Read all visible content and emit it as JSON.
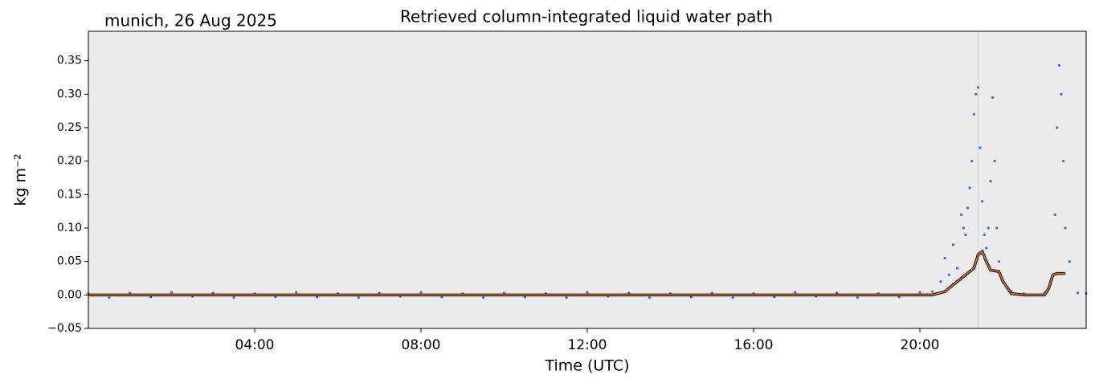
{
  "chart_data": {
    "type": "scatter",
    "title": "Retrieved column-integrated liquid water path",
    "subtitle": "munich, 26 Aug 2025",
    "x_label": "Time (UTC)",
    "y_label": "kg m⁻²",
    "xlim": [
      0,
      24
    ],
    "ylim": [
      -0.05,
      0.394
    ],
    "xticks": [
      {
        "value": 4,
        "label": "04:00"
      },
      {
        "value": 8,
        "label": "08:00"
      },
      {
        "value": 12,
        "label": "12:00"
      },
      {
        "value": 16,
        "label": "16:00"
      },
      {
        "value": 20,
        "label": "20:00"
      }
    ],
    "yticks": [
      {
        "value": -0.05,
        "label": "−0.05"
      },
      {
        "value": 0,
        "label": "0.00"
      },
      {
        "value": 0.05,
        "label": "0.05"
      },
      {
        "value": 0.1,
        "label": "0.10"
      },
      {
        "value": 0.15,
        "label": "0.15"
      },
      {
        "value": 0.2,
        "label": "0.20"
      },
      {
        "value": 0.25,
        "label": "0.25"
      },
      {
        "value": 0.3,
        "label": "0.30"
      },
      {
        "value": 0.35,
        "label": "0.35"
      }
    ],
    "vline": 21.4,
    "background": "#ebebeb",
    "series": [
      {
        "type": "scatter",
        "color": "#4169e1",
        "x": [
          0,
          0.5,
          1,
          1.5,
          2,
          2.5,
          3,
          3.5,
          4,
          4.5,
          5,
          5.5,
          6,
          6.5,
          7,
          7.5,
          8,
          8.5,
          9,
          9.5,
          10,
          10.5,
          11,
          11.5,
          12,
          12.5,
          13,
          13.5,
          14,
          14.5,
          15,
          15.5,
          16,
          16.5,
          17,
          17.5,
          18,
          18.5,
          19,
          19.5,
          20,
          20.3,
          20.5,
          20.6,
          20.7,
          20.8,
          20.9,
          21,
          21.05,
          21.1,
          21.15,
          21.2,
          21.25,
          21.3,
          21.35,
          21.4,
          21.45,
          21.5,
          21.55,
          21.6,
          21.65,
          21.7,
          21.75,
          21.8,
          21.85,
          21.9,
          22,
          22.1,
          22.2,
          22.5,
          23,
          23.2,
          23.25,
          23.3,
          23.35,
          23.4,
          23.45,
          23.5,
          23.6,
          23.8,
          24
        ],
        "values": [
          0.002,
          -0.004,
          0.003,
          -0.003,
          0.004,
          -0.002,
          0.003,
          -0.004,
          0.002,
          -0.003,
          0.004,
          -0.003,
          0.002,
          -0.004,
          0.003,
          -0.002,
          0.004,
          -0.003,
          0.002,
          -0.004,
          0.003,
          -0.003,
          0.002,
          -0.004,
          0.004,
          -0.002,
          0.003,
          -0.004,
          0.002,
          -0.003,
          0.003,
          -0.004,
          0.002,
          -0.003,
          0.004,
          -0.002,
          0.003,
          -0.004,
          0.002,
          -0.003,
          0.004,
          0.005,
          0.02,
          0.055,
          0.03,
          0.075,
          0.04,
          0.12,
          0.1,
          0.09,
          0.13,
          0.16,
          0.2,
          0.27,
          0.3,
          0.31,
          0.22,
          0.14,
          0.09,
          0.07,
          0.1,
          0.17,
          0.295,
          0.2,
          0.1,
          0.05,
          0.02,
          0.01,
          0.005,
          0.002,
          0.003,
          0.03,
          0.12,
          0.25,
          0.343,
          0.3,
          0.2,
          0.1,
          0.05,
          0.003,
          0.002
        ]
      },
      {
        "type": "line",
        "color": "#c87137",
        "x": [
          0,
          20.3,
          20.6,
          20.9,
          21.1,
          21.3,
          21.4,
          21.5,
          21.6,
          21.7,
          21.9,
          22.0,
          22.2,
          22.5,
          23.0,
          23.1,
          23.2,
          23.3,
          23.5
        ],
        "values": [
          0,
          0,
          0.005,
          0.02,
          0.03,
          0.04,
          0.06,
          0.065,
          0.05,
          0.037,
          0.035,
          0.02,
          0.002,
          0,
          0,
          0.01,
          0.03,
          0.032,
          0.032
        ]
      }
    ]
  }
}
